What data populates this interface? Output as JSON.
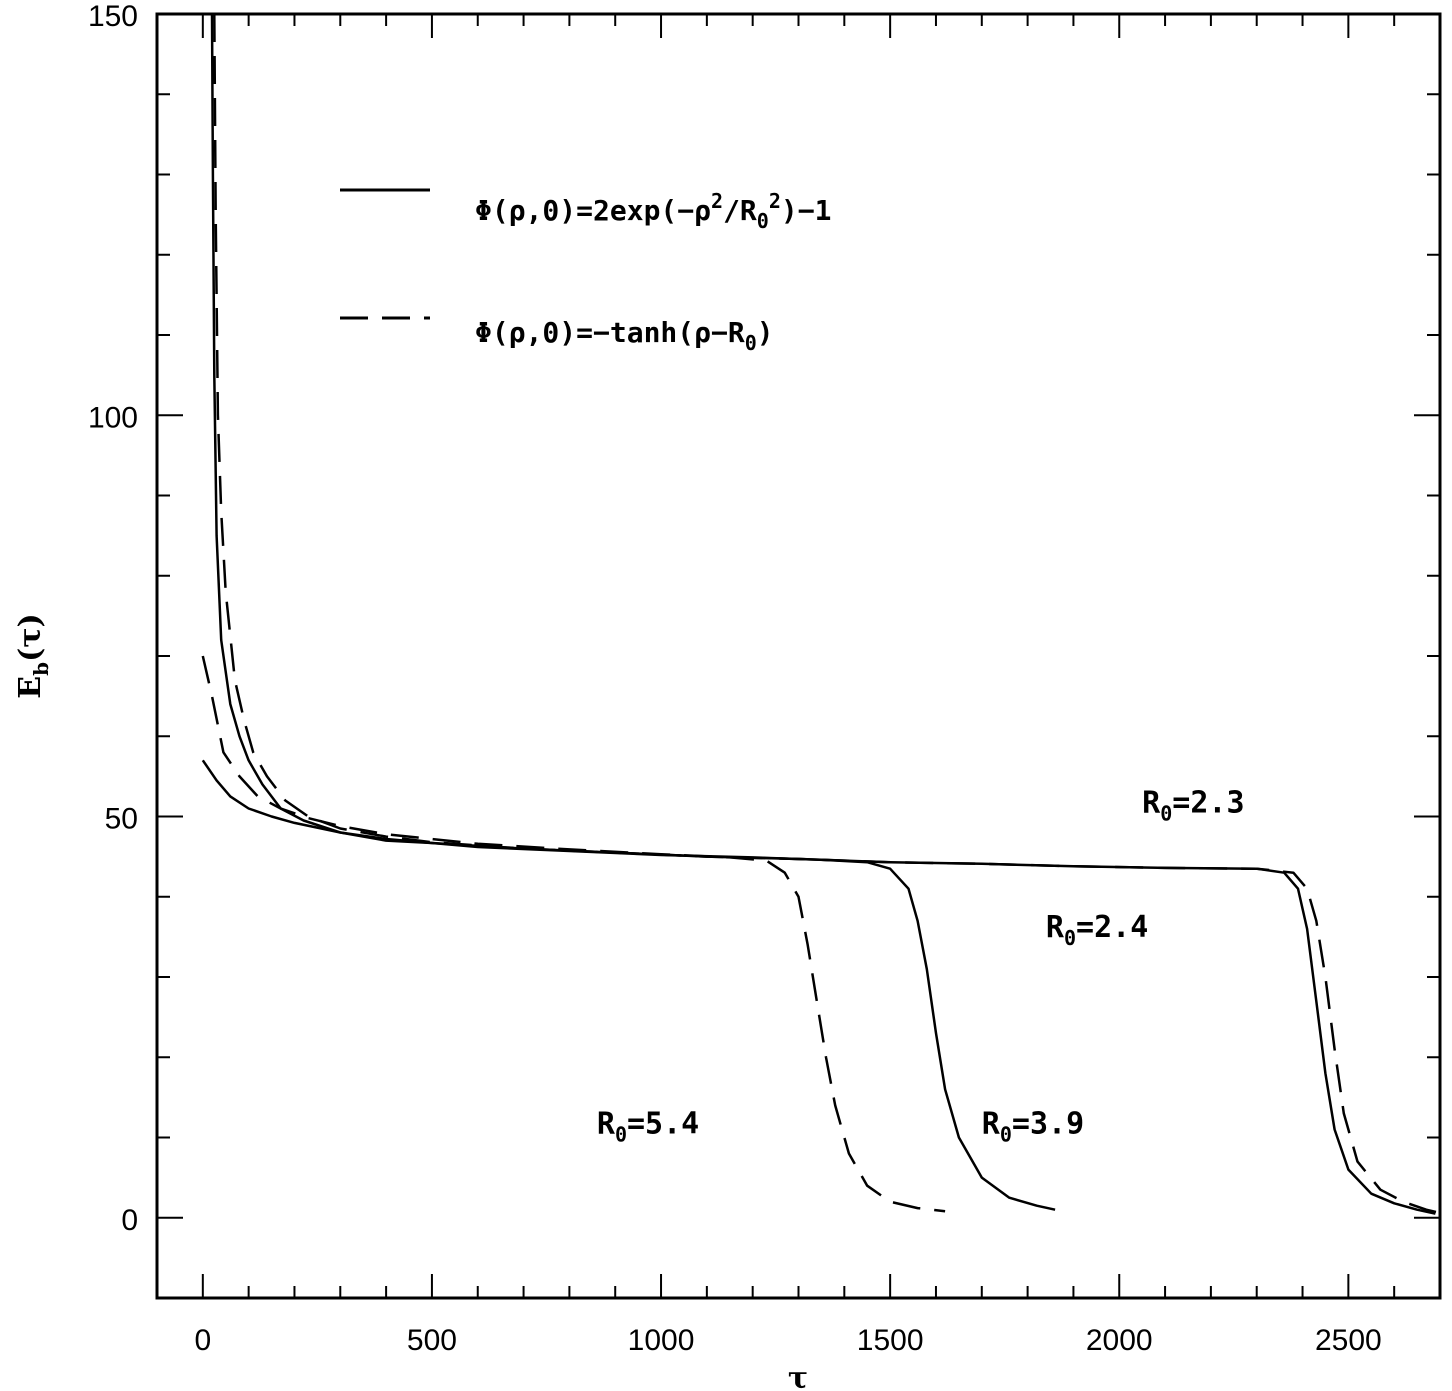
{
  "chart_data": {
    "type": "line",
    "title": "",
    "xlabel": "τ",
    "ylabel": "E",
    "ylabel_sub": "b",
    "ylabel_arg": "(τ)",
    "xlim": [
      -100,
      2700
    ],
    "ylim": [
      -10,
      150
    ],
    "x_ticks": [
      0,
      500,
      1000,
      1500,
      2000,
      2500
    ],
    "x_tick_labels": [
      "0",
      "500",
      "1000",
      "1500",
      "2000",
      "2500"
    ],
    "y_ticks": [
      0,
      50,
      100,
      150
    ],
    "y_tick_labels": [
      "0",
      "50",
      "100",
      "150"
    ],
    "grid": false,
    "legend": {
      "placement": "upper-left",
      "entries": [
        {
          "style": "solid",
          "label": "Φ(ρ,0)=2exp(−ρ",
          "label_sup": "2",
          "label_mid": "/R",
          "label_sub": "0",
          "label_sup2": "2",
          "label_end": ")−1"
        },
        {
          "style": "dashed",
          "label": "Φ(ρ,0)=−tanh(ρ−R",
          "label_sub": "0",
          "label_end": ")"
        }
      ]
    },
    "annotations": [
      {
        "text": "R",
        "sub": "0",
        "rest": "=2.3",
        "x": 2050,
        "y": 50.5
      },
      {
        "text": "R",
        "sub": "0",
        "rest": "=2.4",
        "x": 1840,
        "y": 35
      },
      {
        "text": "R",
        "sub": "0",
        "rest": "=5.4",
        "x": 860,
        "y": 10.5
      },
      {
        "text": "R",
        "sub": "0",
        "rest": "=3.9",
        "x": 1700,
        "y": 10.5
      }
    ],
    "series": [
      {
        "style": "solid",
        "x": [
          20,
          22,
          25,
          30,
          40,
          60,
          80,
          100,
          130,
          170,
          220,
          300,
          400,
          500,
          700,
          900,
          1100,
          1300,
          1500,
          1700,
          1900,
          2100,
          2300,
          2360,
          2390,
          2410,
          2430,
          2450,
          2470,
          2500,
          2550,
          2600,
          2650,
          2690
        ],
        "y": [
          150,
          130,
          105,
          85,
          72,
          64,
          60,
          57,
          54,
          51,
          49.5,
          48,
          47,
          46.7,
          46,
          45.5,
          45,
          44.7,
          44.3,
          44.1,
          43.8,
          43.6,
          43.5,
          43,
          41,
          36,
          27,
          18,
          11,
          6,
          3,
          1.8,
          1,
          0.5
        ]
      },
      {
        "style": "dashed",
        "x": [
          25,
          28,
          33,
          40,
          50,
          70,
          90,
          110,
          140,
          180,
          230,
          300,
          400,
          500,
          700,
          900,
          1100,
          1300,
          1500,
          1700,
          1900,
          2100,
          2300,
          2380,
          2410,
          2430,
          2450,
          2470,
          2490,
          2520,
          2570,
          2620,
          2670,
          2700
        ],
        "y": [
          150,
          125,
          100,
          88,
          78,
          67,
          62,
          58,
          55,
          52,
          50,
          48.5,
          47.5,
          46.8,
          46,
          45.5,
          45,
          44.7,
          44.3,
          44.1,
          43.8,
          43.6,
          43.5,
          43,
          41,
          37,
          30,
          21,
          13,
          7,
          3.5,
          2,
          1,
          0.6
        ]
      },
      {
        "style": "solid",
        "x": [
          0,
          30,
          60,
          100,
          150,
          200,
          300,
          400,
          600,
          800,
          1000,
          1200,
          1350,
          1450,
          1500,
          1540,
          1560,
          1580,
          1600,
          1620,
          1650,
          1700,
          1760,
          1820,
          1860
        ],
        "y": [
          57,
          54.5,
          52.5,
          51,
          50,
          49.2,
          48,
          47.2,
          46.2,
          45.7,
          45.2,
          44.9,
          44.6,
          44.3,
          43.5,
          41,
          37,
          31,
          23,
          16,
          10,
          5,
          2.5,
          1.5,
          1
        ]
      },
      {
        "style": "dashed",
        "x": [
          0,
          20,
          45,
          80,
          120,
          170,
          230,
          300,
          400,
          600,
          800,
          1000,
          1150,
          1230,
          1270,
          1300,
          1320,
          1340,
          1360,
          1380,
          1410,
          1450,
          1500,
          1560,
          1620
        ],
        "y": [
          70,
          65,
          58,
          55,
          52.5,
          51,
          49.8,
          48.8,
          47.8,
          46.6,
          45.9,
          45.3,
          44.9,
          44.5,
          43,
          40,
          34,
          27,
          20,
          14,
          8,
          4,
          2,
          1.2,
          0.8
        ]
      }
    ]
  }
}
